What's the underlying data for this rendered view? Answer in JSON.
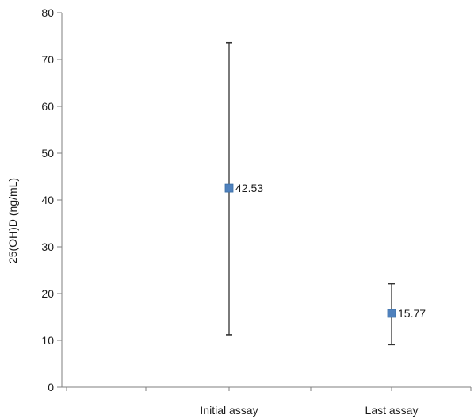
{
  "chart_data": {
    "type": "scatter",
    "title": "",
    "xlabel": "",
    "ylabel": "25(OH)D (ng/mL)",
    "ylim": [
      0,
      80
    ],
    "yticks": [
      "0",
      "10",
      "20",
      "30",
      "40",
      "50",
      "60",
      "70",
      "80"
    ],
    "categories": [
      "Initial assay",
      "Last assay"
    ],
    "series": [
      {
        "values": [
          42.53,
          15.77
        ],
        "error_low": [
          11.2,
          9.1
        ],
        "error_high": [
          73.6,
          22.1
        ],
        "data_labels": [
          "42.53",
          "15.77"
        ],
        "color": "#4f81bd"
      }
    ],
    "error_bar_color": "#595959",
    "axis_color": "#7f7f7f",
    "grid": false,
    "legend": "none"
  }
}
